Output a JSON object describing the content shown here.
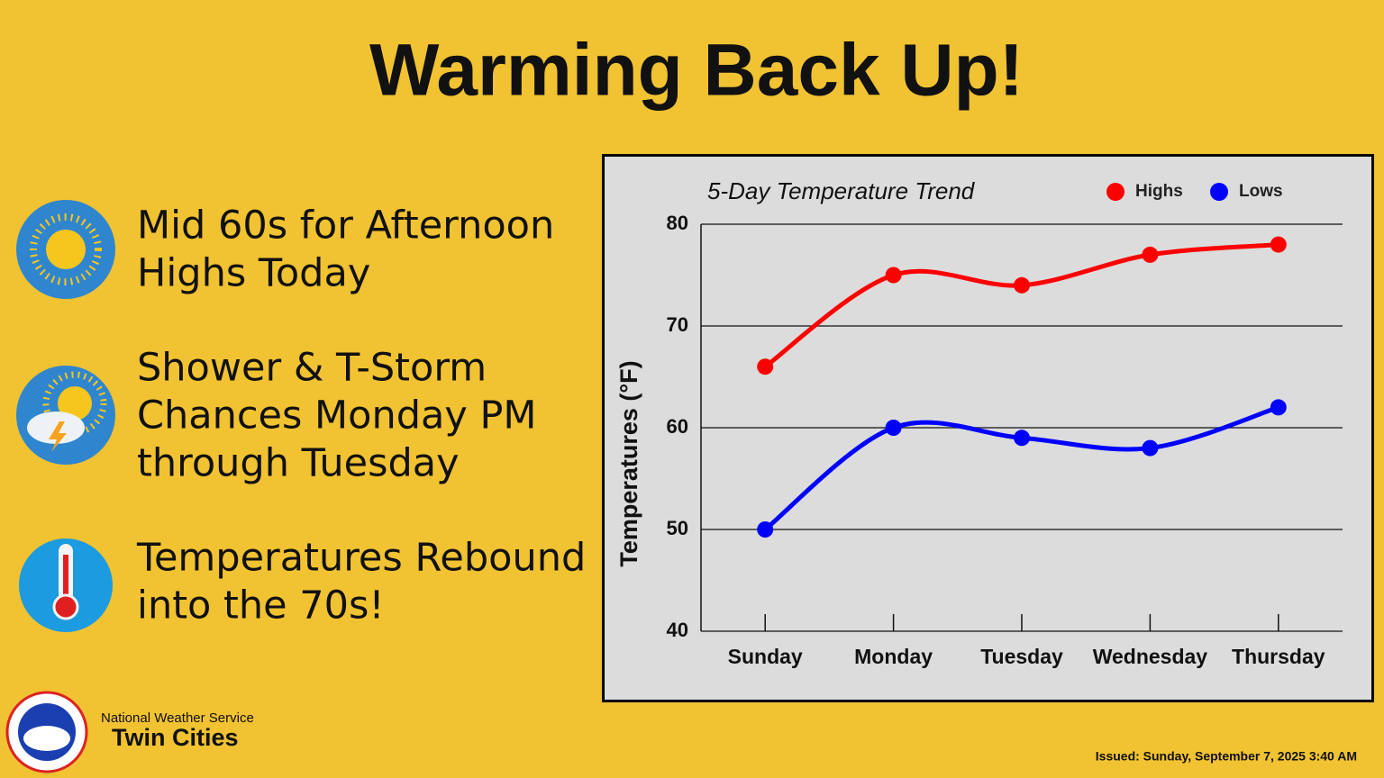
{
  "title": "Warming Back Up!",
  "bullets": [
    [
      "Mid 60s for Afternoon",
      "Highs Today"
    ],
    [
      "Shower & T-Storm",
      "Chances Monday PM",
      "through Tuesday"
    ],
    [
      "Temperatures Rebound",
      "into the 70s!"
    ]
  ],
  "footer": {
    "agency": "National Weather Service",
    "office": "Twin Cities",
    "issued": "Issued: Sunday, September 7, 2025 3:40 AM"
  },
  "chart_data": {
    "type": "line",
    "title": "5-Day Temperature Trend",
    "y_label": "Temperatures (°F)",
    "categories": [
      "Sunday",
      "Monday",
      "Tuesday",
      "Wednesday",
      "Thursday"
    ],
    "series": [
      {
        "name": "Highs",
        "color": "#ff0000",
        "values": [
          66,
          75,
          74,
          77,
          78
        ]
      },
      {
        "name": "Lows",
        "color": "#0000ff",
        "values": [
          50,
          60,
          59,
          58,
          62
        ]
      }
    ],
    "ylim": [
      40,
      80
    ],
    "yticks": [
      40,
      50,
      60,
      70,
      80
    ],
    "grid": true,
    "legend": "top-right",
    "smooth": true
  }
}
